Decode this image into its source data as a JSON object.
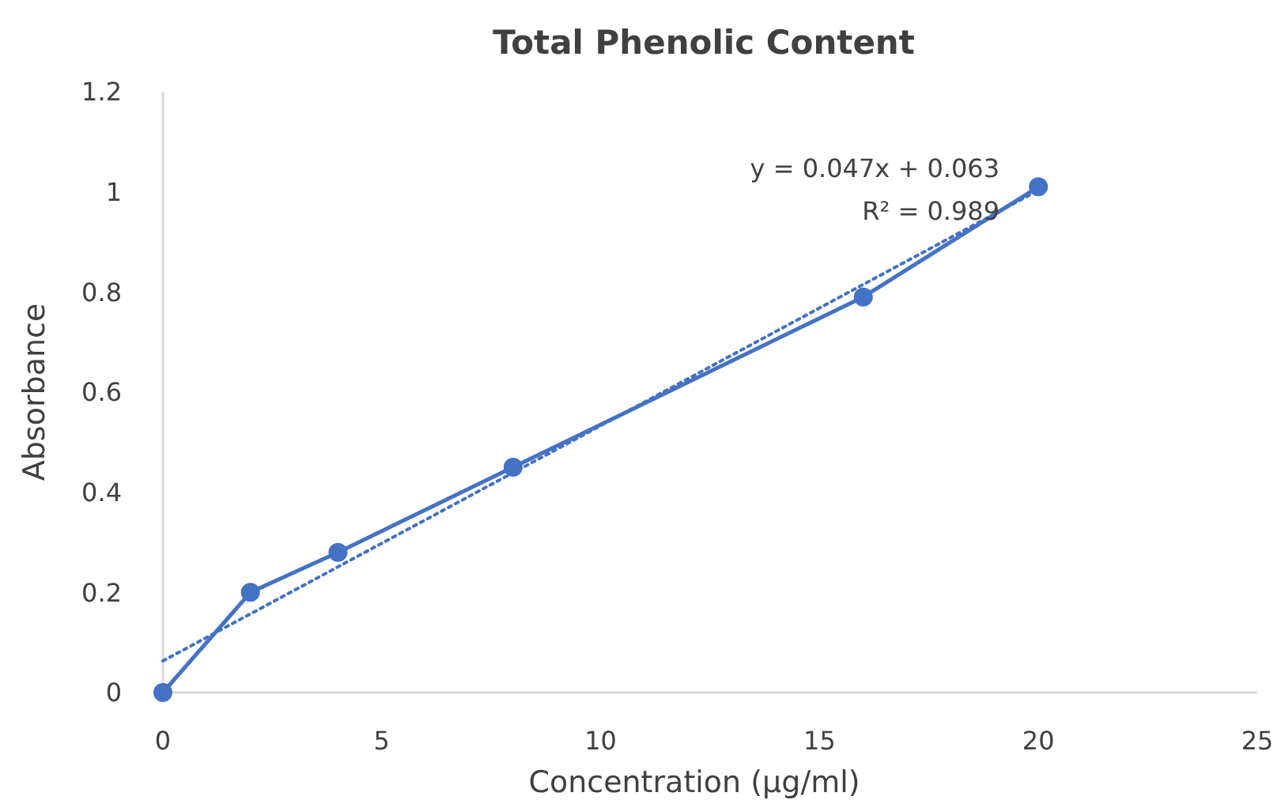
{
  "chart_data": {
    "type": "line",
    "title": "Total Phenolic Content",
    "xlabel": "Concentration (μg/ml)",
    "ylabel": "Absorbance",
    "x": [
      0,
      2,
      4,
      8,
      16,
      20
    ],
    "series": [
      {
        "color": "#4472c4",
        "values": [
          0,
          0.2,
          0.28,
          0.45,
          0.79,
          1.01
        ],
        "marker": "circle",
        "line_style": "solid"
      },
      {
        "type": "line",
        "color": "#4472c4",
        "x": [
          0,
          20
        ],
        "values": [
          0.063,
          1.003
        ],
        "marker": "none",
        "line_style": "dotted"
      }
    ],
    "xlim": [
      0,
      25
    ],
    "xticks": [
      0,
      5,
      10,
      15,
      20,
      25
    ],
    "ylim": [
      0,
      1.2
    ],
    "yticks": [
      0,
      0.2,
      0.4,
      0.6,
      0.8,
      1,
      1.2
    ],
    "grid": false,
    "annotations": [
      "y = 0.047x + 0.063",
      "R² = 0.989"
    ]
  }
}
